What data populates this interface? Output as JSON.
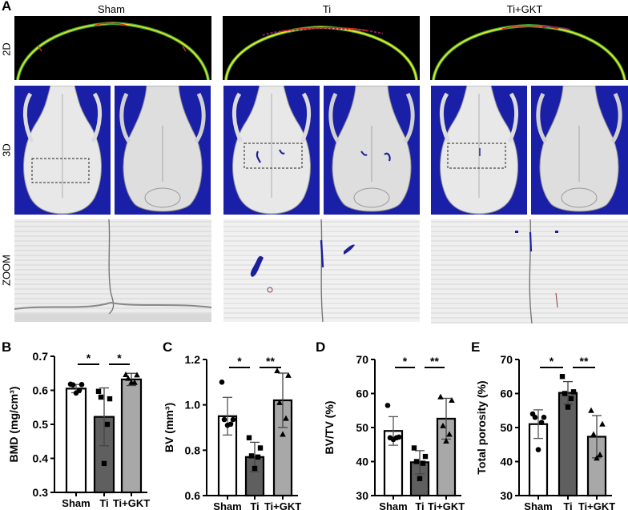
{
  "figure": {
    "panel_a": {
      "letter": "A",
      "groups": [
        "Sham",
        "Ti",
        "Ti+GKT"
      ],
      "row_labels": [
        "2D",
        "3D",
        "ZOOM"
      ],
      "colors": {
        "background_3d": "#1a1fa8",
        "bone": "#e6e6e6",
        "defect_highlight": "#1c1f9c",
        "ct_bone_green": "#3aa83a",
        "ct_bone_yellow": "#f2e21e",
        "ct_bone_red": "#d62a1e",
        "ct_bone_magenta": "#8a1a6a"
      }
    },
    "panel_letters": [
      "B",
      "C",
      "D",
      "E"
    ]
  },
  "chart_data": [
    {
      "panel": "B",
      "type": "bar",
      "categories": [
        "Sham",
        "Ti",
        "Ti+GKT"
      ],
      "values": [
        0.605,
        0.522,
        0.632
      ],
      "error": [
        0.012,
        0.085,
        0.018
      ],
      "points": [
        [
          0.618,
          0.617,
          0.616,
          0.6,
          0.592
        ],
        [
          0.597,
          0.575,
          0.58,
          0.5,
          0.385
        ],
        [
          0.646,
          0.645,
          0.635,
          0.623,
          0.623
        ]
      ],
      "markers": [
        "circle",
        "square",
        "triangle"
      ],
      "bar_colors": [
        "#ffffff",
        "#5f5f5f",
        "#a8a8a8"
      ],
      "title": "",
      "xlabel": "",
      "ylabel": "BMD (mg/cm³)",
      "ylim": [
        0.3,
        0.7
      ],
      "yticks": [
        "0.3",
        "0.4",
        "0.5",
        "0.6",
        "0.7"
      ],
      "significance": [
        {
          "between": [
            "Sham",
            "Ti"
          ],
          "label": "*"
        },
        {
          "between": [
            "Ti",
            "Ti+GKT"
          ],
          "label": "*"
        }
      ]
    },
    {
      "panel": "C",
      "type": "bar",
      "categories": [
        "Sham",
        "Ti",
        "Ti+GKT"
      ],
      "values": [
        0.95,
        0.77,
        1.02
      ],
      "error": [
        0.083,
        0.065,
        0.12
      ],
      "points": [
        [
          1.1,
          0.935,
          0.935,
          0.915,
          0.91
        ],
        [
          0.855,
          0.81,
          0.775,
          0.77,
          0.72
        ],
        [
          1.15,
          1.13,
          1.01,
          0.94,
          0.87
        ]
      ],
      "markers": [
        "circle",
        "square",
        "triangle"
      ],
      "bar_colors": [
        "#ffffff",
        "#5f5f5f",
        "#a8a8a8"
      ],
      "title": "",
      "xlabel": "",
      "ylabel": "BV (mm³)",
      "ylim": [
        0.6,
        1.2
      ],
      "yticks": [
        "0.6",
        "0.8",
        "1.0",
        "1.2"
      ],
      "significance": [
        {
          "between": [
            "Sham",
            "Ti"
          ],
          "label": "*"
        },
        {
          "between": [
            "Ti",
            "Ti+GKT"
          ],
          "label": "**"
        }
      ]
    },
    {
      "panel": "D",
      "type": "bar",
      "categories": [
        "Sham",
        "Ti",
        "Ti+GKT"
      ],
      "values": [
        49.0,
        39.8,
        52.6
      ],
      "error": [
        4.2,
        3.4,
        6.0
      ],
      "points": [
        [
          56.5,
          47.2,
          47.0,
          47.0,
          46.5
        ],
        [
          44.0,
          41.5,
          40.0,
          39.5,
          35.0
        ],
        [
          59.0,
          58.0,
          50.5,
          48.0,
          46.0
        ]
      ],
      "markers": [
        "circle",
        "square",
        "triangle"
      ],
      "bar_colors": [
        "#ffffff",
        "#5f5f5f",
        "#a8a8a8"
      ],
      "title": "",
      "xlabel": "",
      "ylabel": "BV/TV (%)",
      "ylim": [
        30,
        70
      ],
      "yticks": [
        "30",
        "40",
        "50",
        "60",
        "70"
      ],
      "significance": [
        {
          "between": [
            "Sham",
            "Ti"
          ],
          "label": "*"
        },
        {
          "between": [
            "Ti",
            "Ti+GKT"
          ],
          "label": "**"
        }
      ]
    },
    {
      "panel": "E",
      "type": "bar",
      "categories": [
        "Sham",
        "Ti",
        "Ti+GKT"
      ],
      "values": [
        51.0,
        60.2,
        47.3
      ],
      "error": [
        4.2,
        3.3,
        6.2
      ],
      "points": [
        [
          54.0,
          53.0,
          53.0,
          51.5,
          43.5
        ],
        [
          65.0,
          60.5,
          60.0,
          58.5,
          56.0
        ],
        [
          55.0,
          51.0,
          48.0,
          42.0,
          41.0
        ]
      ],
      "markers": [
        "circle",
        "square",
        "triangle"
      ],
      "bar_colors": [
        "#ffffff",
        "#5f5f5f",
        "#a8a8a8"
      ],
      "title": "",
      "xlabel": "",
      "ylabel": "Total porosity (%)",
      "ylim": [
        30,
        70
      ],
      "yticks": [
        "30",
        "40",
        "50",
        "60",
        "70"
      ],
      "significance": [
        {
          "between": [
            "Sham",
            "Ti"
          ],
          "label": "*"
        },
        {
          "between": [
            "Ti",
            "Ti+GKT"
          ],
          "label": "**"
        }
      ]
    }
  ]
}
